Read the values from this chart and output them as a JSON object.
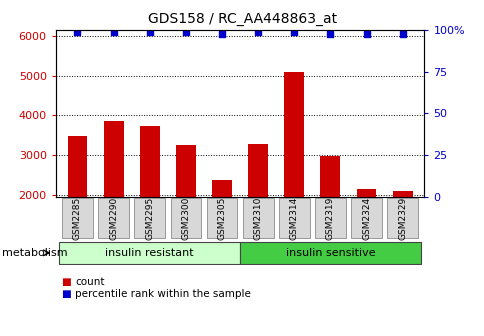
{
  "title": "GDS158 / RC_AA448863_at",
  "samples": [
    "GSM2285",
    "GSM2290",
    "GSM2295",
    "GSM2300",
    "GSM2305",
    "GSM2310",
    "GSM2314",
    "GSM2319",
    "GSM2324",
    "GSM2329"
  ],
  "counts": [
    3480,
    3850,
    3720,
    3250,
    2380,
    3280,
    5100,
    2980,
    2150,
    2100
  ],
  "percentiles": [
    99,
    99,
    99,
    99,
    98,
    99,
    99,
    98,
    98,
    98
  ],
  "bar_color": "#cc0000",
  "dot_color": "#0000cc",
  "ylim_left": [
    1950,
    6150
  ],
  "ylim_right": [
    0,
    100
  ],
  "yticks_left": [
    2000,
    3000,
    4000,
    5000,
    6000
  ],
  "yticks_right": [
    0,
    25,
    50,
    75,
    100
  ],
  "ytick_labels_right": [
    "0",
    "25",
    "50",
    "75",
    "100%"
  ],
  "groups": [
    {
      "label": "insulin resistant",
      "start": 0,
      "end": 5,
      "color": "#ccffcc"
    },
    {
      "label": "insulin sensitive",
      "start": 5,
      "end": 10,
      "color": "#44cc44"
    }
  ],
  "group_label": "metabolism",
  "legend_items": [
    {
      "label": "count",
      "color": "#cc0000"
    },
    {
      "label": "percentile rank within the sample",
      "color": "#0000cc"
    }
  ],
  "tick_label_box_color": "#d8d8d8",
  "tick_label_box_edge": "#999999",
  "background_color": "#ffffff",
  "grid_color": "#000000"
}
